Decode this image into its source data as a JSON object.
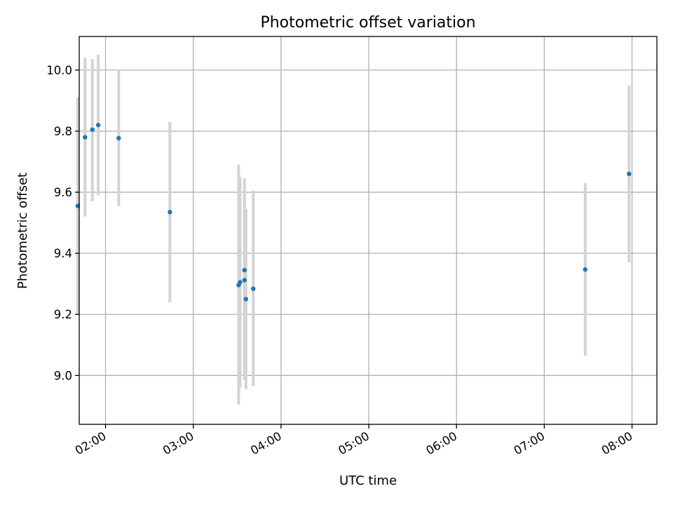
{
  "chart_data": {
    "type": "scatter",
    "title": "Photometric offset variation",
    "xlabel": "UTC time",
    "ylabel": "Photometric offset",
    "x_axis_kind": "time",
    "xlim": [
      "01:42",
      "08:17"
    ],
    "ylim": [
      8.84,
      10.11
    ],
    "grid": true,
    "x_ticks": [
      "02:00",
      "03:00",
      "04:00",
      "05:00",
      "06:00",
      "07:00",
      "08:00"
    ],
    "y_ticks": [
      9.0,
      9.2,
      9.4,
      9.6,
      9.8,
      10.0
    ],
    "y_tick_labels": [
      "9.0",
      "9.2",
      "9.4",
      "9.6",
      "9.8",
      "10.0"
    ],
    "colors": {
      "points": "#1f77b4",
      "error_bars": "#d3d3d3",
      "grid": "#b0b0b0"
    },
    "points": [
      {
        "x": "01:41",
        "y": 9.555,
        "ymin": 9.2,
        "ymax": 9.91
      },
      {
        "x": "01:46",
        "y": 9.78,
        "ymin": 9.52,
        "ymax": 10.04
      },
      {
        "x": "01:51",
        "y": 9.805,
        "ymin": 9.57,
        "ymax": 10.035
      },
      {
        "x": "01:55",
        "y": 9.82,
        "ymin": 9.59,
        "ymax": 10.05
      },
      {
        "x": "02:09",
        "y": 9.777,
        "ymin": 9.555,
        "ymax": 10.0
      },
      {
        "x": "02:44",
        "y": 9.535,
        "ymin": 9.24,
        "ymax": 9.83
      },
      {
        "x": "03:31",
        "y": 9.296,
        "ymin": 8.905,
        "ymax": 9.69
      },
      {
        "x": "03:32",
        "y": 9.305,
        "ymin": 8.96,
        "ymax": 9.65
      },
      {
        "x": "03:35",
        "y": 9.345,
        "ymin": 8.99,
        "ymax": 9.645
      },
      {
        "x": "03:35",
        "y": 9.312,
        "ymin": 8.985,
        "ymax": 9.645
      },
      {
        "x": "03:36",
        "y": 9.25,
        "ymin": 8.955,
        "ymax": 9.545
      },
      {
        "x": "03:41",
        "y": 9.284,
        "ymin": 8.965,
        "ymax": 9.605
      },
      {
        "x": "07:28",
        "y": 9.347,
        "ymin": 9.065,
        "ymax": 9.63
      },
      {
        "x": "07:58",
        "y": 9.66,
        "ymin": 9.37,
        "ymax": 9.95
      }
    ]
  }
}
